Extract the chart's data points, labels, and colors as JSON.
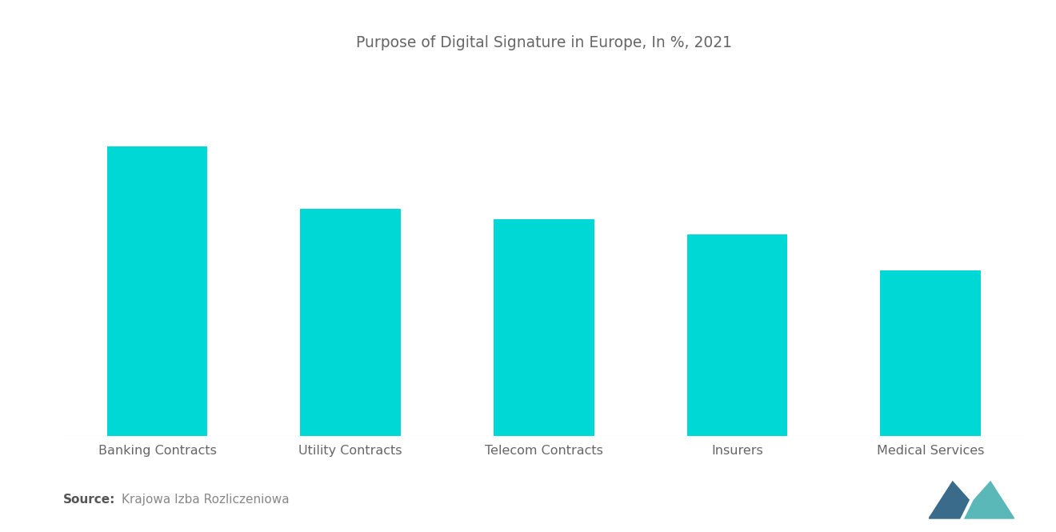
{
  "title": "Purpose of Digital Signature in Europe, In %, 2021",
  "categories": [
    "Banking Contracts",
    "Utility Contracts",
    "Telecom Contracts",
    "Insurers",
    "Medical Services"
  ],
  "values": [
    28,
    22,
    21,
    19.5,
    16
  ],
  "bar_color": "#00D8D6",
  "background_color": "#ffffff",
  "title_color": "#666666",
  "label_color": "#666666",
  "source_bold": "Source:",
  "source_text": "  Krajowa Izba Rozliczeniowa",
  "title_fontsize": 13.5,
  "label_fontsize": 11.5,
  "source_fontsize": 11,
  "ylim": [
    0,
    36
  ],
  "bar_width": 0.52,
  "logo_left_color": "#3A6B8A",
  "logo_right_color": "#5BB8B8"
}
